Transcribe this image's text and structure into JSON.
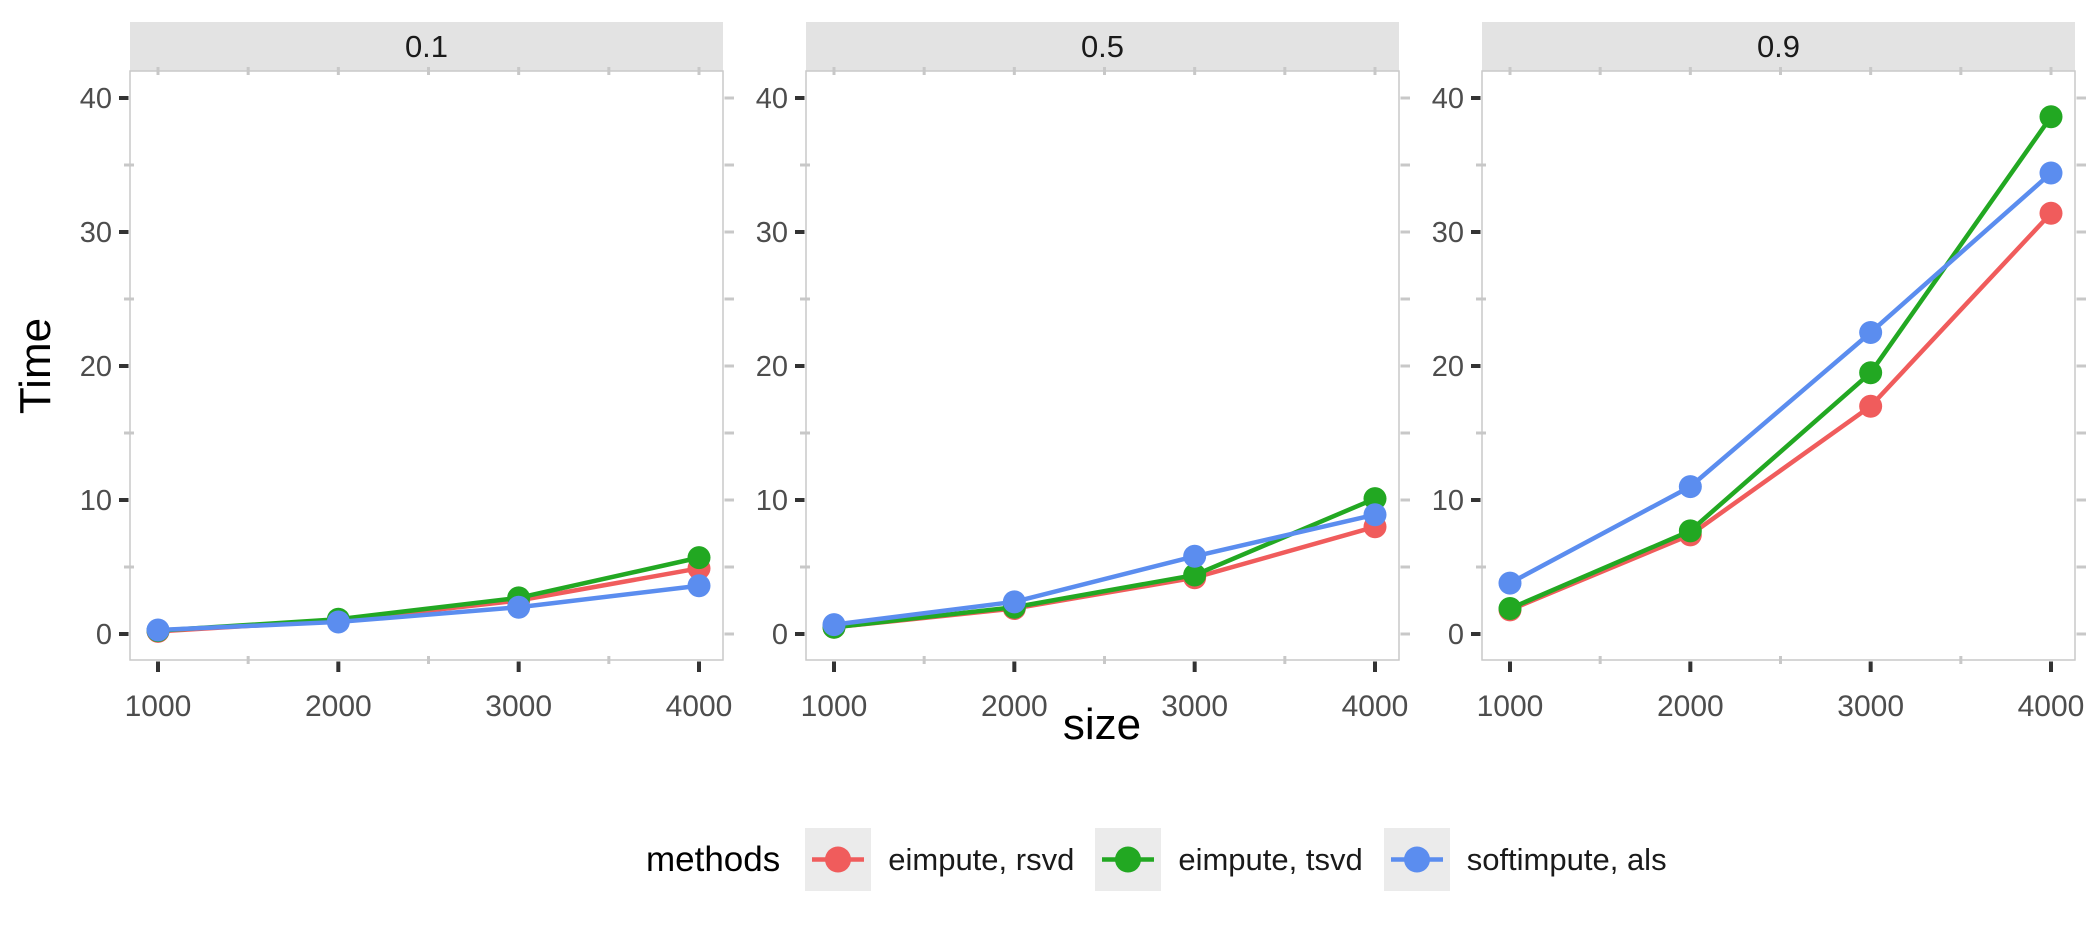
{
  "figure": {
    "x_axis_title": "size",
    "y_axis_title": "Time",
    "legend": {
      "title": "methods",
      "items": [
        {
          "label": "eimpute, rsvd",
          "color": "#F05C5C"
        },
        {
          "label": "eimpute, tsvd",
          "color": "#22A822"
        },
        {
          "label": "softimpute, als",
          "color": "#5B8DEF"
        }
      ]
    }
  },
  "chart_data": {
    "type": "line",
    "title": "",
    "xlabel": "size",
    "ylabel": "Time",
    "legend_title": "methods",
    "legend_position": "bottom",
    "grid": false,
    "x": [
      1000,
      2000,
      3000,
      4000
    ],
    "x_ticks": [
      1000,
      2000,
      3000,
      4000
    ],
    "y_ticks": [
      0,
      10,
      20,
      30,
      40
    ],
    "ylim": [
      0,
      40
    ],
    "xlim": [
      1000,
      4000
    ],
    "x_minor_tick_step": 500,
    "y_minor_tick_step": 5,
    "facet_labels": [
      "0.1",
      "0.5",
      "0.9"
    ],
    "series": [
      {
        "name": "eimpute, rsvd",
        "color": "#F05C5C"
      },
      {
        "name": "eimpute, tsvd",
        "color": "#22A822"
      },
      {
        "name": "softimpute, als",
        "color": "#5B8DEF"
      }
    ],
    "facets": [
      {
        "label": "0.1",
        "values": {
          "eimpute, rsvd": [
            0.2,
            1.0,
            2.5,
            4.9
          ],
          "eimpute, tsvd": [
            0.25,
            1.1,
            2.7,
            5.7
          ],
          "softimpute, als": [
            0.3,
            0.9,
            2.0,
            3.6
          ]
        }
      },
      {
        "label": "0.5",
        "values": {
          "eimpute, rsvd": [
            0.5,
            1.9,
            4.2,
            8.0
          ],
          "eimpute, tsvd": [
            0.5,
            2.0,
            4.4,
            10.1
          ],
          "softimpute, als": [
            0.7,
            2.4,
            5.8,
            8.9
          ]
        }
      },
      {
        "label": "0.9",
        "values": {
          "eimpute, rsvd": [
            1.8,
            7.4,
            17.0,
            31.4
          ],
          "eimpute, tsvd": [
            1.9,
            7.7,
            19.5,
            38.6
          ],
          "softimpute, als": [
            3.8,
            11.0,
            22.5,
            34.4
          ]
        }
      }
    ],
    "style": {
      "strip_background": "#E3E3E3",
      "panel_border": "#C9C9C9",
      "major_tick_color": "#333333",
      "minor_tick_color": "#C8C8C8",
      "tick_label_color": "#4D4D4D",
      "strip_text_color": "#1A1A1A",
      "legend_key_background": "#EBEBEB"
    }
  }
}
